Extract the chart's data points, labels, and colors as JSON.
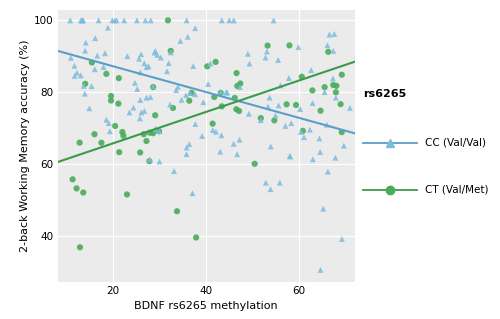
{
  "xlabel": "BDNF rs6265 methylation",
  "ylabel": "2-back Working Memory accuracy (%)",
  "legend_title": "rs6265",
  "legend_cc": "CC (Val/Val)",
  "legend_ct": "CT (Val/Met)",
  "xlim": [
    8,
    72
  ],
  "ylim": [
    27,
    103
  ],
  "xticks": [
    20,
    40,
    60
  ],
  "yticks": [
    40,
    60,
    80,
    100
  ],
  "bg_color": "#ebebeb",
  "grid_color": "#ffffff",
  "cc_color": "#7bbcde",
  "ct_color": "#4aac5a",
  "cc_line_color": "#5b9ec9",
  "ct_line_color": "#3a9b4a",
  "cc_line_x0": 8,
  "cc_line_x1": 72,
  "cc_line_y0": 91.5,
  "cc_line_y1": 68.5,
  "ct_line_x0": 8,
  "ct_line_x1": 72,
  "ct_line_y0": 60.5,
  "ct_line_y1": 88.5,
  "cc_seed": 77,
  "ct_seed": 42,
  "n_cc": 145,
  "n_ct": 66
}
